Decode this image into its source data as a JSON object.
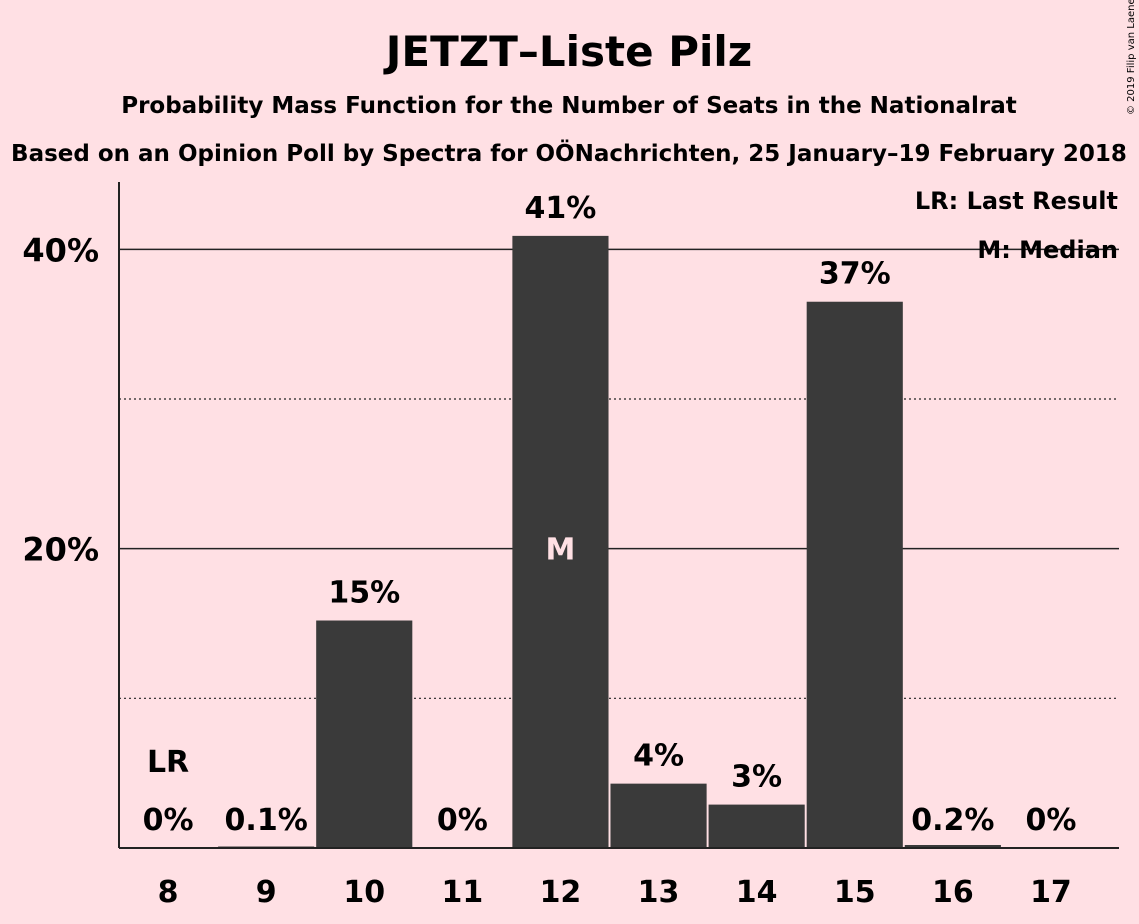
{
  "chart_data": {
    "type": "bar",
    "title": "JETZT–Liste Pilz",
    "subtitle": "Probability Mass Function for the Number of Seats in the Nationalrat",
    "subtitle2": "Based on an Opinion Poll by Spectra for OÖNachrichten, 25 January–19 February 2018",
    "categories": [
      "8",
      "9",
      "10",
      "11",
      "12",
      "13",
      "14",
      "15",
      "16",
      "17"
    ],
    "values": [
      0,
      0.1,
      15.2,
      0,
      40.9,
      4.3,
      2.9,
      36.5,
      0.2,
      0
    ],
    "data_labels": [
      "0%",
      "0.1%",
      "15%",
      "0%",
      "41%",
      "4%",
      "3%",
      "37%",
      "0.2%",
      "0%"
    ],
    "ylim": [
      0,
      44.5
    ],
    "yticks": [
      {
        "value": 20,
        "label": "20%"
      },
      {
        "value": 40,
        "label": "40%"
      }
    ],
    "minor_gridlines": [
      10,
      30
    ],
    "last_result": {
      "category": "8",
      "label": "LR"
    },
    "median": {
      "category": "12",
      "label": "M"
    },
    "legend": [
      "LR: Last Result",
      "M: Median"
    ],
    "legend_position": "top-right",
    "bar_color": "#3A3A3A",
    "background_color": "#FFE0E4"
  },
  "copyright": "© 2019 Filip van Laenen"
}
